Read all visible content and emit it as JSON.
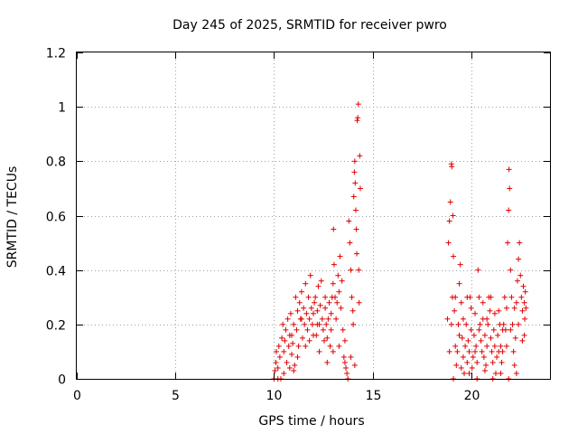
{
  "chart_data": {
    "type": "scatter",
    "title": "Day 245 of 2025, SRMTID for receiver pwro",
    "xlabel": "GPS time / hours",
    "ylabel": "SRMTID / TECUs",
    "xlim": [
      0,
      24
    ],
    "ylim": [
      0,
      1.2
    ],
    "x_ticks": [
      0,
      5,
      10,
      15,
      20
    ],
    "x_tick_labels": [
      "0",
      "5",
      "10",
      "15",
      "20"
    ],
    "y_ticks": [
      0,
      0.2,
      0.4,
      0.6,
      0.8,
      1.0,
      1.2
    ],
    "y_tick_labels": [
      "0",
      "0.2",
      "0.4",
      "0.6",
      "0.8",
      "1",
      "1.2"
    ],
    "grid": true,
    "marker": "+",
    "color": "#e00000",
    "series": [
      {
        "name": "pwro",
        "points": [
          [
            10.0,
            0.0
          ],
          [
            10.05,
            0.03
          ],
          [
            10.1,
            0.06
          ],
          [
            10.12,
            0.1
          ],
          [
            10.2,
            0.04
          ],
          [
            10.25,
            0.12
          ],
          [
            10.3,
            0.08
          ],
          [
            10.35,
            0.0
          ],
          [
            10.4,
            0.15
          ],
          [
            10.45,
            0.2
          ],
          [
            10.5,
            0.1
          ],
          [
            10.55,
            0.14
          ],
          [
            10.6,
            0.18
          ],
          [
            10.65,
            0.06
          ],
          [
            10.7,
            0.22
          ],
          [
            10.75,
            0.12
          ],
          [
            10.8,
            0.16
          ],
          [
            10.85,
            0.24
          ],
          [
            10.9,
            0.09
          ],
          [
            10.95,
            0.13
          ],
          [
            11.0,
            0.2
          ],
          [
            11.05,
            0.05
          ],
          [
            11.1,
            0.3
          ],
          [
            11.15,
            0.18
          ],
          [
            11.2,
            0.25
          ],
          [
            11.25,
            0.12
          ],
          [
            11.3,
            0.28
          ],
          [
            11.35,
            0.22
          ],
          [
            11.4,
            0.32
          ],
          [
            11.45,
            0.15
          ],
          [
            11.5,
            0.26
          ],
          [
            11.55,
            0.2
          ],
          [
            11.6,
            0.35
          ],
          [
            11.65,
            0.24
          ],
          [
            11.7,
            0.18
          ],
          [
            11.75,
            0.3
          ],
          [
            11.8,
            0.22
          ],
          [
            11.85,
            0.38
          ],
          [
            11.9,
            0.26
          ],
          [
            11.95,
            0.2
          ],
          [
            12.0,
            0.24
          ],
          [
            12.05,
            0.28
          ],
          [
            12.1,
            0.3
          ],
          [
            12.15,
            0.16
          ],
          [
            12.2,
            0.25
          ],
          [
            12.25,
            0.34
          ],
          [
            12.3,
            0.2
          ],
          [
            12.35,
            0.27
          ],
          [
            12.4,
            0.36
          ],
          [
            12.45,
            0.22
          ],
          [
            12.5,
            0.18
          ],
          [
            12.55,
            0.14
          ],
          [
            12.6,
            0.26
          ],
          [
            12.65,
            0.2
          ],
          [
            12.7,
            0.15
          ],
          [
            12.75,
            0.22
          ],
          [
            12.8,
            0.28
          ],
          [
            12.85,
            0.12
          ],
          [
            12.9,
            0.24
          ],
          [
            12.95,
            0.3
          ],
          [
            13.0,
            0.35
          ],
          [
            13.02,
            0.55
          ],
          [
            13.05,
            0.42
          ],
          [
            13.1,
            0.3
          ],
          [
            13.15,
            0.22
          ],
          [
            13.2,
            0.28
          ],
          [
            13.25,
            0.38
          ],
          [
            13.3,
            0.32
          ],
          [
            13.35,
            0.45
          ],
          [
            13.4,
            0.26
          ],
          [
            13.45,
            0.36
          ],
          [
            13.5,
            0.18
          ],
          [
            13.55,
            0.08
          ],
          [
            13.6,
            0.14
          ],
          [
            13.65,
            0.04
          ],
          [
            13.7,
            0.02
          ],
          [
            13.75,
            0.0
          ],
          [
            13.8,
            0.58
          ],
          [
            13.85,
            0.5
          ],
          [
            13.9,
            0.4
          ],
          [
            13.95,
            0.3
          ],
          [
            14.0,
            0.25
          ],
          [
            14.02,
            0.2
          ],
          [
            14.05,
            0.67
          ],
          [
            14.08,
            0.76
          ],
          [
            14.1,
            0.8
          ],
          [
            14.12,
            0.72
          ],
          [
            14.15,
            0.62
          ],
          [
            14.18,
            0.55
          ],
          [
            14.2,
            0.46
          ],
          [
            14.22,
            0.95
          ],
          [
            14.25,
            0.96
          ],
          [
            14.28,
            1.01
          ],
          [
            14.3,
            0.4
          ],
          [
            14.32,
            0.28
          ],
          [
            14.35,
            0.82
          ],
          [
            14.38,
            0.7
          ],
          [
            10.2,
            0.0
          ],
          [
            10.5,
            0.02
          ],
          [
            10.8,
            0.04
          ],
          [
            11.0,
            0.03
          ],
          [
            11.2,
            0.08
          ],
          [
            11.6,
            0.12
          ],
          [
            12.0,
            0.16
          ],
          [
            12.3,
            0.1
          ],
          [
            12.7,
            0.06
          ],
          [
            13.0,
            0.1
          ],
          [
            13.3,
            0.12
          ],
          [
            13.6,
            0.06
          ],
          [
            13.9,
            0.08
          ],
          [
            14.1,
            0.05
          ],
          [
            11.8,
            0.14
          ],
          [
            12.2,
            0.2
          ],
          [
            12.6,
            0.3
          ],
          [
            12.9,
            0.18
          ],
          [
            11.4,
            0.22
          ],
          [
            10.9,
            0.16
          ],
          [
            18.8,
            0.22
          ],
          [
            18.85,
            0.5
          ],
          [
            18.9,
            0.58
          ],
          [
            18.95,
            0.65
          ],
          [
            19.0,
            0.79
          ],
          [
            19.02,
            0.78
          ],
          [
            19.05,
            0.3
          ],
          [
            19.08,
            0.6
          ],
          [
            19.1,
            0.45
          ],
          [
            19.15,
            0.25
          ],
          [
            19.2,
            0.12
          ],
          [
            19.25,
            0.05
          ],
          [
            19.3,
            0.1
          ],
          [
            19.35,
            0.2
          ],
          [
            19.4,
            0.35
          ],
          [
            19.45,
            0.42
          ],
          [
            19.5,
            0.28
          ],
          [
            19.55,
            0.15
          ],
          [
            19.6,
            0.08
          ],
          [
            19.65,
            0.02
          ],
          [
            19.7,
            0.12
          ],
          [
            19.75,
            0.2
          ],
          [
            19.8,
            0.06
          ],
          [
            19.85,
            0.14
          ],
          [
            19.9,
            0.1
          ],
          [
            19.95,
            0.3
          ],
          [
            20.0,
            0.18
          ],
          [
            20.05,
            0.04
          ],
          [
            20.1,
            0.08
          ],
          [
            20.15,
            0.16
          ],
          [
            20.2,
            0.24
          ],
          [
            20.25,
            0.12
          ],
          [
            20.3,
            0.06
          ],
          [
            20.35,
            0.4
          ],
          [
            20.4,
            0.3
          ],
          [
            20.45,
            0.2
          ],
          [
            20.5,
            0.14
          ],
          [
            20.55,
            0.1
          ],
          [
            20.6,
            0.22
          ],
          [
            20.65,
            0.08
          ],
          [
            20.7,
            0.16
          ],
          [
            20.75,
            0.05
          ],
          [
            20.8,
            0.12
          ],
          [
            20.85,
            0.2
          ],
          [
            20.9,
            0.3
          ],
          [
            20.95,
            0.25
          ],
          [
            21.0,
            0.15
          ],
          [
            21.05,
            0.1
          ],
          [
            21.1,
            0.06
          ],
          [
            21.15,
            0.18
          ],
          [
            21.2,
            0.12
          ],
          [
            21.25,
            0.02
          ],
          [
            21.3,
            0.08
          ],
          [
            21.35,
            0.16
          ],
          [
            21.4,
            0.25
          ],
          [
            21.45,
            0.2
          ],
          [
            21.5,
            0.12
          ],
          [
            21.55,
            0.06
          ],
          [
            21.6,
            0.1
          ],
          [
            21.65,
            0.2
          ],
          [
            21.7,
            0.3
          ],
          [
            21.75,
            0.18
          ],
          [
            21.8,
            0.12
          ],
          [
            21.85,
            0.5
          ],
          [
            21.9,
            0.62
          ],
          [
            21.92,
            0.77
          ],
          [
            21.95,
            0.7
          ],
          [
            22.0,
            0.4
          ],
          [
            22.05,
            0.3
          ],
          [
            22.1,
            0.2
          ],
          [
            22.15,
            0.1
          ],
          [
            22.2,
            0.05
          ],
          [
            22.25,
            0.15
          ],
          [
            22.3,
            0.28
          ],
          [
            22.35,
            0.36
          ],
          [
            22.4,
            0.44
          ],
          [
            22.45,
            0.5
          ],
          [
            22.5,
            0.38
          ],
          [
            22.55,
            0.3
          ],
          [
            22.6,
            0.25
          ],
          [
            22.65,
            0.34
          ],
          [
            22.7,
            0.28
          ],
          [
            22.72,
            0.22
          ],
          [
            22.75,
            0.32
          ],
          [
            22.78,
            0.26
          ],
          [
            18.9,
            0.1
          ],
          [
            19.0,
            0.2
          ],
          [
            19.2,
            0.3
          ],
          [
            19.4,
            0.16
          ],
          [
            19.6,
            0.22
          ],
          [
            19.8,
            0.3
          ],
          [
            20.0,
            0.26
          ],
          [
            20.2,
            0.1
          ],
          [
            20.4,
            0.18
          ],
          [
            20.6,
            0.28
          ],
          [
            20.8,
            0.22
          ],
          [
            21.0,
            0.3
          ],
          [
            21.2,
            0.24
          ],
          [
            21.4,
            0.1
          ],
          [
            21.6,
            0.18
          ],
          [
            21.8,
            0.26
          ],
          [
            22.0,
            0.18
          ],
          [
            22.2,
            0.26
          ],
          [
            22.4,
            0.2
          ],
          [
            22.6,
            0.14
          ],
          [
            19.1,
            0.0
          ],
          [
            19.5,
            0.04
          ],
          [
            19.9,
            0.02
          ],
          [
            20.3,
            0.0
          ],
          [
            20.7,
            0.03
          ],
          [
            21.1,
            0.0
          ],
          [
            21.5,
            0.02
          ],
          [
            21.9,
            0.0
          ],
          [
            22.3,
            0.02
          ],
          [
            22.7,
            0.16
          ]
        ]
      }
    ]
  }
}
